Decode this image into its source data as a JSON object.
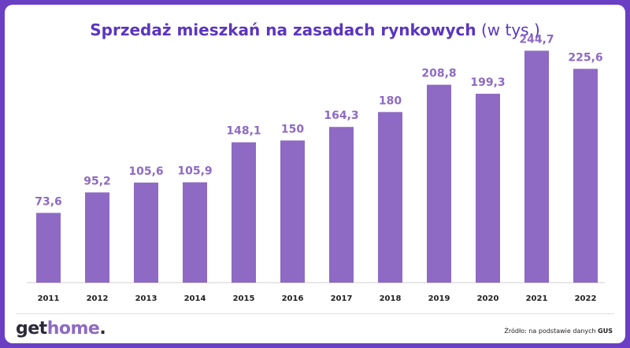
{
  "header": {
    "title": "Sprzedaż mieszkań na zasadach rynkowych",
    "unit": "(w tys.)"
  },
  "brand": {
    "logo_part1": "get",
    "logo_part2": "home",
    "logo_dot": ".",
    "accent_color": "#8e6ac4",
    "frame_color": "#6a3fc4"
  },
  "footer": {
    "source_prefix": "Źródło: na podstawie danych",
    "source_name": "GUS"
  },
  "chart_data": {
    "type": "bar",
    "categories": [
      "2011",
      "2012",
      "2013",
      "2014",
      "2015",
      "2016",
      "2017",
      "2018",
      "2019",
      "2020",
      "2021",
      "2022"
    ],
    "values": [
      73.6,
      95.2,
      105.6,
      105.9,
      148.1,
      150,
      164.3,
      180,
      208.8,
      199.3,
      244.7,
      225.6
    ],
    "value_labels": [
      "73,6",
      "95,2",
      "105,6",
      "105,9",
      "148,1",
      "150",
      "164,3",
      "180",
      "208,8",
      "199,3",
      "244,7",
      "225,6"
    ],
    "ylim": [
      0,
      260
    ],
    "grid": false,
    "legend": "none",
    "bar_color": "#8e6ac4"
  }
}
